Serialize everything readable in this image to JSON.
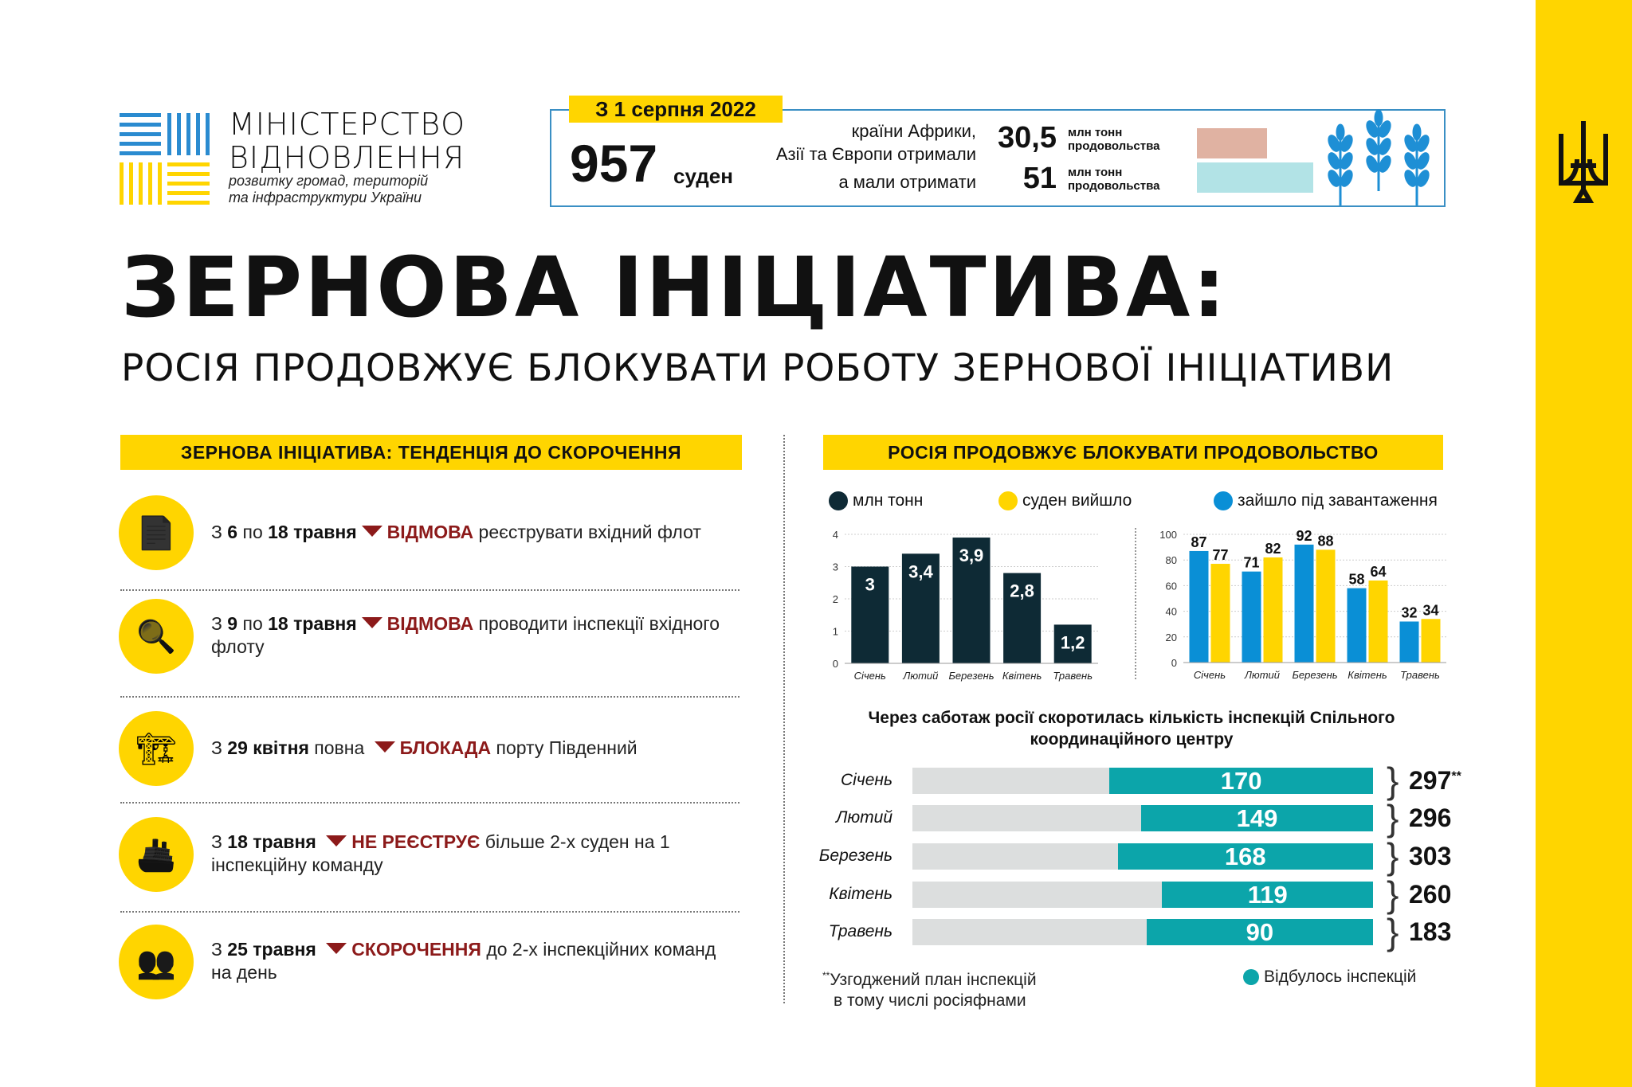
{
  "logo": {
    "line1": "МІНІСТЕРСТВО",
    "line2": "ВІДНОВЛЕННЯ",
    "line3": "розвитку громад, територій",
    "line4": "та інфраструктури України"
  },
  "summary": {
    "date": "З 1 серпня 2022",
    "ships": "957",
    "ships_unit": "суден",
    "text1": "країни Африки,",
    "text2": "Азії та Європи отримали",
    "text3": "а мали отримати",
    "received": "30,5",
    "expected": "51",
    "unit_l1": "млн тонн",
    "unit_l2": "продовольства",
    "bar_received_color": "#e0b2a2",
    "bar_expected_color": "#b2e3e6"
  },
  "title": "ЗЕРНОВА ІНІЦІАТИВА:",
  "subtitle": "РОСІЯ ПРОДОВЖУЄ БЛОКУВАТИ РОБОТУ ЗЕРНОВОЇ ІНІЦІАТИВИ",
  "left": {
    "header": "ЗЕРНОВА ІНІЦІАТИВА: ТЕНДЕНЦІЯ ДО СКОРОЧЕННЯ",
    "items": [
      {
        "icon": "rejected-document-icon",
        "p1": "З ",
        "b1": "6",
        "p2": " по ",
        "b2": "18 травня",
        "red": "ВІДМОВА",
        "rest": " реєструвати вхідний флот"
      },
      {
        "icon": "inspector-icon",
        "p1": "З ",
        "b1": "9",
        "p2": " по ",
        "b2": "18 травня",
        "red": "ВІДМОВА",
        "rest": " проводити інспекції вхідного флоту"
      },
      {
        "icon": "port-crane-icon",
        "p1": "З ",
        "b1": "29 квітня",
        "p2": " повна",
        "b2": "",
        "red": "БЛОКАДА",
        "rest": " порту Південний"
      },
      {
        "icon": "cargo-ship-icon",
        "p1": "З ",
        "b1": "18 травня",
        "p2": "",
        "b2": "",
        "red": "НЕ РЕЄСТРУЄ",
        "rest": " більше 2-х суден на 1 інспекційну команду"
      },
      {
        "icon": "team-icon",
        "p1": "З ",
        "b1": "25 травня",
        "p2": "",
        "b2": "",
        "red": "СКОРОЧЕННЯ",
        "rest": " до 2-х інспекційних команд на день"
      }
    ]
  },
  "right": {
    "header": "РОСІЯ ПРОДОВЖУЄ БЛОКУВАТИ ПРОДОВОЛЬСТВО"
  },
  "chart_data": [
    {
      "type": "bar",
      "legend": [
        "млн тонн"
      ],
      "categories": [
        "Січень",
        "Лютий",
        "Березень",
        "Квітень",
        "Травень"
      ],
      "series": [
        {
          "name": "млн тонн",
          "values": [
            3,
            3.4,
            3.9,
            2.8,
            1.2
          ],
          "labels": [
            "3",
            "3,4",
            "3,9",
            "2,8",
            "1,2"
          ],
          "color": "#0e2a35"
        }
      ],
      "ylim": [
        0,
        4
      ],
      "yticks": [
        0,
        1,
        2,
        3,
        4
      ],
      "grid": true
    },
    {
      "type": "bar",
      "categories": [
        "Січень",
        "Лютий",
        "Березень",
        "Квітень",
        "Травень"
      ],
      "series": [
        {
          "name": "зайшло під завантаження",
          "values": [
            87,
            71,
            92,
            58,
            32
          ],
          "color": "#0a8fd6"
        },
        {
          "name": "суден вийшло",
          "values": [
            77,
            82,
            88,
            64,
            34
          ],
          "color": "#ffd500"
        }
      ],
      "ylim": [
        0,
        100
      ],
      "yticks": [
        0,
        20,
        40,
        60,
        80,
        100
      ],
      "grid": true
    },
    {
      "type": "bar",
      "orientation": "horizontal",
      "title": "Через саботаж росії скоротилась кількість інспекцій Спільного координаційного центру",
      "categories": [
        "Січень",
        "Лютий",
        "Березень",
        "Квітень",
        "Травень"
      ],
      "series": [
        {
          "name": "Відбулось інспекцій",
          "values": [
            170,
            149,
            168,
            119,
            90
          ],
          "color": "#0ca5aa"
        }
      ],
      "totals": [
        297,
        296,
        303,
        260,
        183
      ],
      "totals_mark": "**",
      "footnote_mark": "**",
      "footnote": [
        "Узгоджений план інспекцій",
        "в тому числі росіяфнами"
      ]
    }
  ]
}
